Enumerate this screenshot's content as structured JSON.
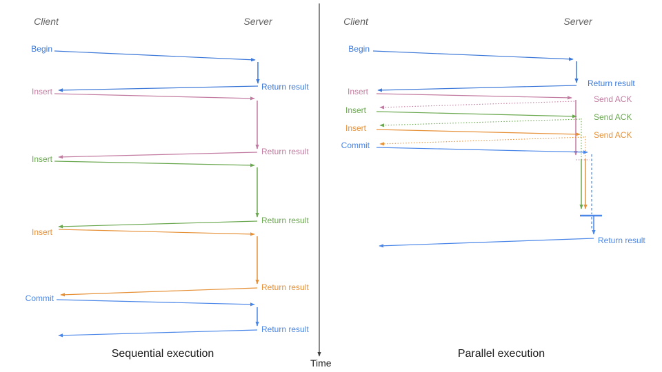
{
  "colors": {
    "begin": "#3c78d8",
    "insert_pink": "#c27ba0",
    "insert_green": "#6aa84f",
    "insert_orange": "#e69138",
    "commit": "#4a86e8",
    "axis": "#3d3d3d",
    "header_text": "#5f5f5f",
    "title_text": "#1a1a1a"
  },
  "time_axis": {
    "label": "Time"
  },
  "left": {
    "title": "Sequential execution",
    "client_header": "Client",
    "server_header": "Server",
    "messages": [
      {
        "label": "Begin",
        "response": "Return result"
      },
      {
        "label": "Insert",
        "response": "Return result"
      },
      {
        "label": "Insert",
        "response": "Return result"
      },
      {
        "label": "Insert",
        "response": "Return result"
      },
      {
        "label": "Commit",
        "response": "Return result"
      }
    ]
  },
  "right": {
    "title": "Parallel execution",
    "client_header": "Client",
    "server_header": "Server",
    "messages": [
      {
        "label": "Begin",
        "response": "Return result"
      },
      {
        "label": "Insert",
        "response": "Send ACK"
      },
      {
        "label": "Insert",
        "response": "Send ACK"
      },
      {
        "label": "Insert",
        "response": "Send ACK"
      },
      {
        "label": "Commit",
        "response": "Return result"
      }
    ]
  }
}
